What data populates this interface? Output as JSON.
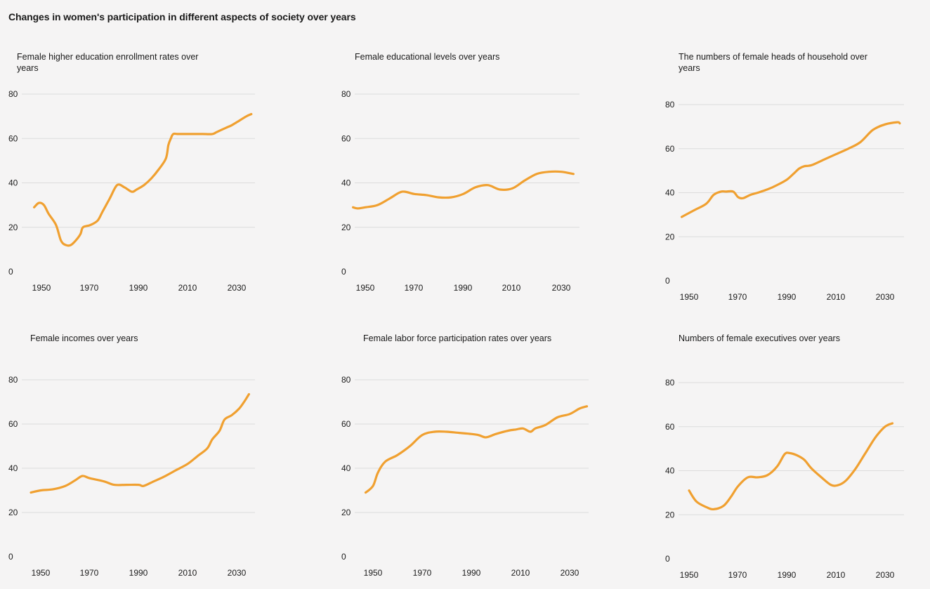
{
  "page_title": "Changes in women's participation in different aspects of society over years",
  "colors": {
    "line": "#f0a030",
    "grid": "#dcdcdc",
    "background": "#f5f4f4"
  },
  "chart_data": [
    {
      "type": "line",
      "title": "Female higher education enrollment rates over years",
      "x_ticks": [
        "1950",
        "1970",
        "1990",
        "2010",
        "2030"
      ],
      "y_ticks": [
        "0",
        "20",
        "40",
        "60",
        "80"
      ],
      "xlim": [
        1946,
        2038
      ],
      "ylim": [
        0,
        80
      ],
      "grid": true,
      "x": [
        1947,
        1949,
        1951,
        1953,
        1956,
        1958,
        1960,
        1962,
        1964,
        1966,
        1967,
        1970,
        1973,
        1975,
        1978,
        1981,
        1984,
        1987,
        1989,
        1992,
        1995,
        1998,
        2001,
        2002,
        2003,
        2004,
        2006,
        2009,
        2012,
        2016,
        2020,
        2022,
        2026,
        2028,
        2031,
        2034,
        2036
      ],
      "values": [
        29,
        31,
        30,
        26,
        21,
        14,
        12,
        12,
        14,
        17,
        20,
        21,
        23,
        27,
        33,
        39,
        38,
        36,
        37,
        39,
        42,
        46,
        51,
        57,
        60,
        62,
        62,
        62,
        62,
        62,
        62,
        63,
        65,
        66,
        68,
        70,
        71
      ]
    },
    {
      "type": "line",
      "title": "Female educational levels over years",
      "x_ticks": [
        "1950",
        "1970",
        "1990",
        "2010",
        "2030"
      ],
      "y_ticks": [
        "0",
        "20",
        "40",
        "60",
        "80"
      ],
      "xlim": [
        1946,
        2038
      ],
      "ylim": [
        0,
        80
      ],
      "grid": true,
      "x": [
        1945,
        1947,
        1950,
        1955,
        1960,
        1965,
        1970,
        1975,
        1980,
        1985,
        1990,
        1995,
        2000,
        2005,
        2010,
        2015,
        2020,
        2025,
        2030,
        2035
      ],
      "values": [
        29,
        28.5,
        29,
        30,
        33,
        36,
        35,
        34.5,
        33.5,
        33.5,
        35,
        38,
        39,
        37,
        37.5,
        41,
        44,
        45,
        45,
        44
      ]
    },
    {
      "type": "line",
      "title": "The numbers of female heads of household over years",
      "x_ticks": [
        "1950",
        "1970",
        "1990",
        "2010",
        "2030"
      ],
      "y_ticks": [
        "0",
        "20",
        "40",
        "60",
        "80"
      ],
      "xlim": [
        1946,
        2038
      ],
      "ylim": [
        0,
        80
      ],
      "grid": true,
      "x": [
        1947,
        1952,
        1957,
        1960,
        1963,
        1965,
        1968,
        1970,
        1972,
        1975,
        1978,
        1982,
        1986,
        1990,
        1993,
        1995,
        1997,
        2000,
        2005,
        2010,
        2015,
        2020,
        2025,
        2030,
        2035,
        2036
      ],
      "values": [
        29,
        32,
        35,
        39,
        40.5,
        40.5,
        40.5,
        38,
        37.5,
        39,
        40,
        41.5,
        43.5,
        46,
        49,
        51,
        52,
        52.5,
        55,
        57.5,
        60,
        63,
        68.5,
        71,
        72,
        71.5
      ]
    },
    {
      "type": "line",
      "title": "Female incomes over years",
      "x_ticks": [
        "1950",
        "1970",
        "1990",
        "2010",
        "2030"
      ],
      "y_ticks": [
        "0",
        "20",
        "40",
        "60",
        "80"
      ],
      "xlim": [
        1946,
        2038
      ],
      "ylim": [
        0,
        80
      ],
      "grid": true,
      "x": [
        1946,
        1950,
        1955,
        1960,
        1964,
        1967,
        1970,
        1976,
        1980,
        1985,
        1990,
        1992,
        1996,
        2000,
        2005,
        2010,
        2014,
        2018,
        2020,
        2023,
        2025,
        2028,
        2031,
        2033,
        2035
      ],
      "values": [
        29,
        30,
        30.5,
        32,
        34.5,
        36.5,
        35.5,
        34,
        32.5,
        32.5,
        32.5,
        32,
        34,
        36,
        39,
        42,
        45.5,
        49,
        53,
        57,
        62,
        64,
        67,
        70,
        73.5
      ]
    },
    {
      "type": "line",
      "title": "Female labor force participation rates over years",
      "x_ticks": [
        "1950",
        "1970",
        "1990",
        "2010",
        "2030"
      ],
      "y_ticks": [
        "0",
        "20",
        "40",
        "60",
        "80"
      ],
      "xlim": [
        1946,
        2038
      ],
      "ylim": [
        0,
        80
      ],
      "grid": true,
      "x": [
        1947,
        1950,
        1952,
        1955,
        1960,
        1965,
        1970,
        1975,
        1980,
        1985,
        1990,
        1993,
        1996,
        2000,
        2005,
        2008,
        2011,
        2014,
        2016,
        2020,
        2025,
        2030,
        2034,
        2037
      ],
      "values": [
        29,
        32,
        38,
        43,
        46,
        50,
        55,
        56.5,
        56.5,
        56,
        55.5,
        55,
        54,
        55.5,
        57,
        57.5,
        58,
        56.5,
        58,
        59.5,
        63,
        64.5,
        67,
        68
      ]
    },
    {
      "type": "line",
      "title": "Numbers of female executives over years",
      "x_ticks": [
        "1950",
        "1970",
        "1990",
        "2010",
        "2030"
      ],
      "y_ticks": [
        "0",
        "20",
        "40",
        "60",
        "80"
      ],
      "xlim": [
        1946,
        2038
      ],
      "ylim": [
        0,
        80
      ],
      "grid": true,
      "x": [
        1950,
        1953,
        1957,
        1960,
        1964,
        1967,
        1970,
        1974,
        1978,
        1982,
        1986,
        1989,
        1991,
        1994,
        1997,
        2000,
        2004,
        2008,
        2011,
        2014,
        2018,
        2022,
        2026,
        2030,
        2033
      ],
      "values": [
        31,
        26,
        23.5,
        22.5,
        24,
        28,
        33,
        37,
        37,
        38,
        42,
        47.5,
        48,
        47,
        45,
        41,
        37,
        33.5,
        33.5,
        35.5,
        41,
        48,
        55,
        60,
        61.5
      ]
    }
  ]
}
